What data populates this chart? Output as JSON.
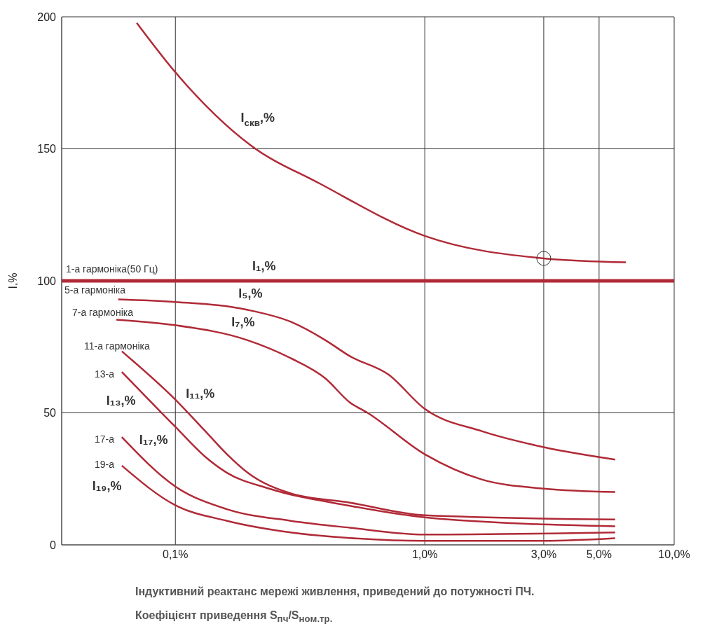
{
  "chart_data": {
    "type": "line",
    "xlabel": "Індуктивний реактанс мережі живлення, приведений до потужності ПЧ.\nКоефіцієнт приведення S$_{пч}$/S$_{ном.тр.}$",
    "ylabel": "I,%",
    "log": "x",
    "xlim": [
      0.035,
      10
    ],
    "xticks": [
      {
        "value": 0.1,
        "label": "0,1%"
      },
      {
        "value": 1,
        "label": "1,0%"
      },
      {
        "value": 3,
        "label": "3,0%"
      },
      {
        "value": 5,
        "label": "5,0%"
      },
      {
        "value": 10,
        "label": "10,0%"
      }
    ],
    "ylim": [
      0,
      200
    ],
    "yticks": [
      0,
      50,
      100,
      150,
      200
    ],
    "grid": true,
    "marker": "none",
    "line_style": "solid",
    "series": [
      {
        "name": "I$_{скв}$,%",
        "color": "#b02a37",
        "x": [
          0.07,
          0.1,
          0.2,
          0.38,
          1,
          3,
          6.4
        ],
        "values": [
          197.7,
          179,
          151.4,
          136.8,
          117,
          108.5,
          107
        ]
      },
      {
        "name": "I₁,%",
        "color": "#b02a37",
        "x": [
          0.035,
          10
        ],
        "values": [
          100,
          100
        ]
      },
      {
        "name": "I₅,%",
        "color": "#b02a37",
        "x": [
          0.059,
          0.1,
          0.195,
          0.29,
          0.4,
          0.5,
          0.715,
          1,
          1.7,
          3,
          5.8
        ],
        "values": [
          93,
          92,
          89,
          84.5,
          77.5,
          71.5,
          64.5,
          51.5,
          43,
          37,
          32.3
        ]
      },
      {
        "name": "I₇,%",
        "color": "#b02a37",
        "x": [
          0.058,
          0.1,
          0.195,
          0.29,
          0.4,
          0.5,
          0.59,
          1,
          1.7,
          3,
          5.8
        ],
        "values": [
          85.3,
          83.2,
          77.5,
          70.7,
          63,
          54,
          50,
          34.3,
          24.7,
          21.3,
          20
        ]
      },
      {
        "name": "I₁₁,%",
        "color": "#b02a37",
        "x": [
          0.061,
          0.1,
          0.132,
          0.161,
          0.195,
          0.29,
          0.5,
          1,
          5.8
        ],
        "values": [
          73.3,
          55,
          43,
          34.3,
          27.3,
          19.5,
          16,
          11.2,
          9.6
        ]
      },
      {
        "name": "I₁₃,%",
        "color": "#b02a37",
        "x": [
          0.061,
          0.1,
          0.132,
          0.161,
          0.238,
          0.5,
          1,
          5.8
        ],
        "values": [
          65.5,
          44.7,
          33.3,
          27.3,
          21.3,
          14.8,
          10.4,
          7
        ]
      },
      {
        "name": "I₁₇,%",
        "color": "#b02a37",
        "x": [
          0.061,
          0.1,
          0.161,
          0.29,
          0.5,
          1,
          5.8
        ],
        "values": [
          40.8,
          22.1,
          13.5,
          9.1,
          6.5,
          3.9,
          4.7
        ]
      },
      {
        "name": "I₁₉,%",
        "color": "#b02a37",
        "x": [
          0.061,
          0.1,
          0.161,
          0.29,
          0.5,
          1,
          3,
          5.8
        ],
        "values": [
          30,
          15,
          9.1,
          4.7,
          2.6,
          1.5,
          1.5,
          2.5
        ]
      },
      {
        "type": "scatter",
        "color": "#333333",
        "marker": "circle",
        "x": [
          3
        ],
        "values": [
          108.5
        ]
      }
    ],
    "annotations": [
      "1-а гармоніка(50 Гц)",
      "5-а гармоніка",
      "7-а гармоніка",
      "11-а гармоніка",
      "13-а",
      "17-а",
      "19-а"
    ]
  }
}
